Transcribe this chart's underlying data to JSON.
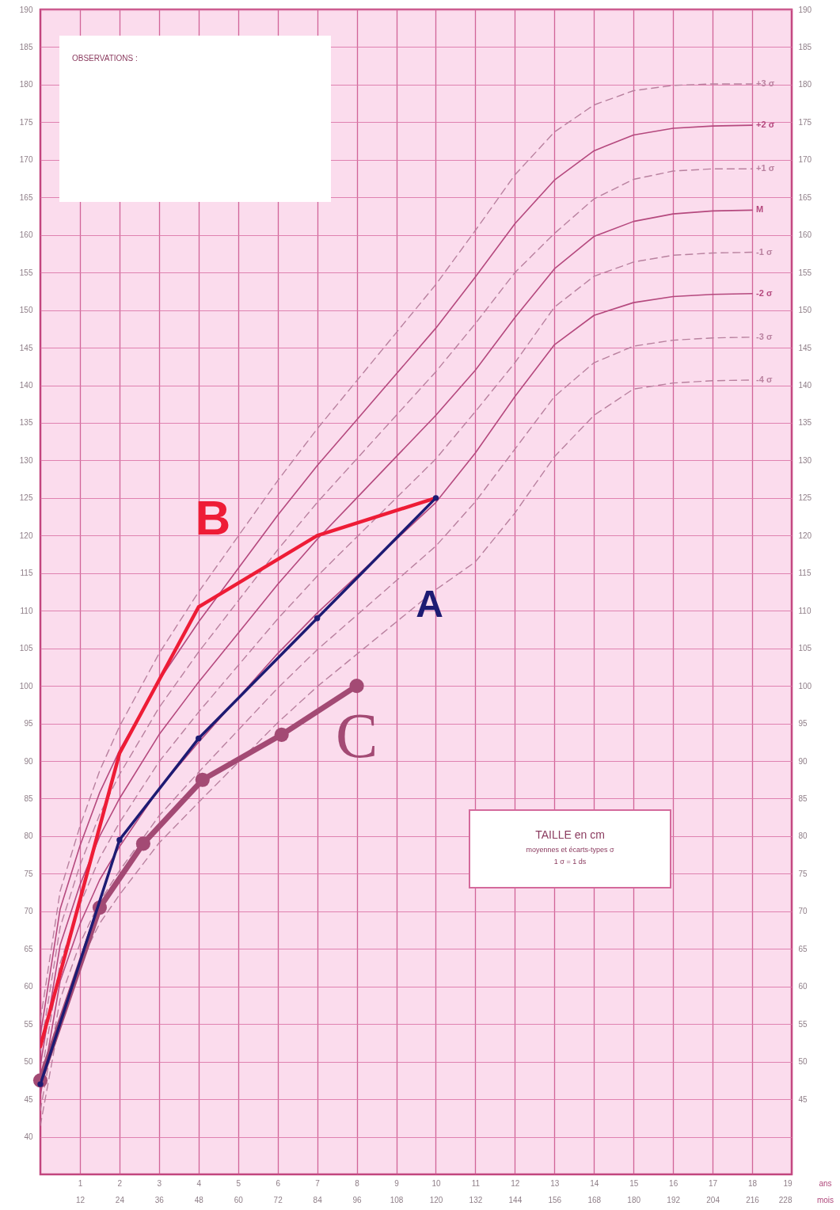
{
  "chart_data": {
    "type": "line",
    "xlabel": "ans",
    "x2label": "mois",
    "xlim": [
      0,
      19
    ],
    "xticks": [
      1,
      2,
      3,
      4,
      5,
      6,
      7,
      8,
      9,
      10,
      11,
      12,
      13,
      14,
      15,
      16,
      17,
      18,
      19
    ],
    "x2lim": [
      0,
      228
    ],
    "x2ticks": [
      12,
      24,
      36,
      48,
      60,
      72,
      84,
      96,
      108,
      120,
      132,
      144,
      156,
      168,
      180,
      192,
      204,
      216,
      228
    ],
    "ylim": [
      35,
      190
    ],
    "yticks": [
      40,
      45,
      50,
      55,
      60,
      65,
      70,
      75,
      80,
      85,
      90,
      95,
      100,
      105,
      110,
      115,
      120,
      125,
      130,
      135,
      140,
      145,
      150,
      155,
      160,
      165,
      170,
      175,
      180,
      185,
      190
    ],
    "y2lim": [
      35,
      190
    ],
    "y2ticks": [
      45,
      50,
      55,
      60,
      65,
      70,
      75,
      80,
      85,
      90,
      95,
      100,
      105,
      110,
      115,
      120,
      125,
      130,
      135,
      140,
      145,
      150,
      155,
      160,
      165,
      170,
      175,
      180,
      185,
      190
    ],
    "grid": true,
    "annotations": [
      "OBSERVATIONS :",
      "TAILLE en cm",
      "moyennes et écarts-types σ",
      "1 σ = 1 ds"
    ],
    "series": [
      {
        "name": "+3 σ",
        "color": "#b9819f",
        "line_style": "dashed",
        "x": [
          0,
          0.5,
          1,
          1.5,
          2,
          3,
          4,
          5,
          6,
          7,
          8,
          9,
          10,
          11,
          12,
          13,
          14,
          15,
          16,
          17,
          18
        ],
        "values": [
          55.5,
          72.7,
          81.3,
          88.7,
          94.6,
          104.3,
          112.5,
          119.9,
          127.3,
          134.2,
          140.6,
          147,
          153.4,
          160.6,
          168,
          173.7,
          177.3,
          179.2,
          179.9,
          180.1,
          180.1
        ]
      },
      {
        "name": "+2 σ",
        "color": "#b5497e",
        "line_style": "solid",
        "x": [
          0,
          0.5,
          1,
          1.5,
          2,
          3,
          4,
          5,
          6,
          7,
          8,
          9,
          10,
          11,
          12,
          13,
          14,
          15,
          16,
          17,
          18
        ],
        "values": [
          53.5,
          70.3,
          78.7,
          85.8,
          91.4,
          100.7,
          108.5,
          115.6,
          122.7,
          129.3,
          135.4,
          141.5,
          147.6,
          154.4,
          161.5,
          167.3,
          171.2,
          173.3,
          174.2,
          174.5,
          174.6
        ]
      },
      {
        "name": "+1 σ",
        "color": "#b9819f",
        "line_style": "dashed",
        "x": [
          0,
          0.5,
          1,
          1.5,
          2,
          3,
          4,
          5,
          6,
          7,
          8,
          9,
          10,
          11,
          12,
          13,
          14,
          15,
          16,
          17,
          18
        ],
        "values": [
          51.5,
          67.9,
          76.1,
          82.9,
          88.2,
          97.1,
          104.5,
          111.3,
          118.1,
          124.4,
          130.2,
          136,
          141.8,
          148.2,
          155,
          160.2,
          164.8,
          167.4,
          168.5,
          168.8,
          168.8
        ]
      },
      {
        "name": "M",
        "color": "#b5497e",
        "line_style": "solid",
        "x": [
          0,
          0.5,
          1,
          1.5,
          2,
          3,
          4,
          5,
          6,
          7,
          8,
          9,
          10,
          11,
          12,
          13,
          14,
          15,
          16,
          17,
          18
        ],
        "values": [
          49.5,
          65.5,
          73.5,
          80,
          85,
          93.5,
          100.5,
          107,
          113.5,
          119.5,
          125,
          130.5,
          136,
          142,
          149,
          155.5,
          159.8,
          161.8,
          162.8,
          163.2,
          163.3
        ]
      },
      {
        "name": "-1 σ",
        "color": "#b9819f",
        "line_style": "dashed",
        "x": [
          0,
          0.5,
          1,
          1.5,
          2,
          3,
          4,
          5,
          6,
          7,
          8,
          9,
          10,
          11,
          12,
          13,
          14,
          15,
          16,
          17,
          18
        ],
        "values": [
          47.5,
          63.1,
          70.9,
          77.1,
          81.8,
          89.9,
          96.5,
          102.7,
          108.9,
          114.6,
          119.8,
          125,
          130.2,
          136.5,
          143,
          150.4,
          154.5,
          156.4,
          157.3,
          157.6,
          157.7
        ]
      },
      {
        "name": "-2 σ",
        "color": "#b5497e",
        "line_style": "solid",
        "x": [
          0,
          0.5,
          1,
          1.5,
          2,
          3,
          4,
          5,
          6,
          7,
          8,
          9,
          10,
          11,
          12,
          13,
          14,
          15,
          16,
          17,
          18
        ],
        "values": [
          45.5,
          60.7,
          68.3,
          74.2,
          78.6,
          86.3,
          92.5,
          98.4,
          104.3,
          109.7,
          114.6,
          119.5,
          124.4,
          131,
          138.5,
          145.4,
          149.3,
          151,
          151.8,
          152.1,
          152.2
        ]
      },
      {
        "name": "-3 σ",
        "color": "#b9819f",
        "line_style": "dashed",
        "x": [
          0,
          0.5,
          1,
          1.5,
          2,
          3,
          4,
          5,
          6,
          7,
          8,
          9,
          10,
          11,
          12,
          13,
          14,
          15,
          16,
          17,
          18
        ],
        "values": [
          43.5,
          58.3,
          65.7,
          71.3,
          75.4,
          82.7,
          88.5,
          94.1,
          99.7,
          104.8,
          109.4,
          114,
          118.6,
          124.5,
          131.5,
          138.5,
          143,
          145.2,
          146,
          146.3,
          146.4
        ]
      },
      {
        "name": "-4 σ",
        "color": "#b9819f",
        "line_style": "dashed",
        "x": [
          0,
          0.5,
          1,
          1.5,
          2,
          3,
          4,
          5,
          6,
          7,
          8,
          9,
          10,
          11,
          12,
          13,
          14,
          15,
          16,
          17,
          18
        ],
        "values": [
          41.5,
          55.9,
          63.1,
          68.4,
          72.2,
          79.1,
          84.5,
          89.8,
          95.1,
          99.9,
          104.2,
          108.5,
          112.8,
          116.5,
          123,
          130.5,
          136,
          139.5,
          140.3,
          140.6,
          140.7
        ]
      },
      {
        "name": "C",
        "color": "#a34a74",
        "line_style": "solid",
        "marker": "circle",
        "x": [
          0,
          1.5,
          2.6,
          4.1,
          6.1,
          8
        ],
        "values": [
          47.5,
          70.5,
          79,
          87.5,
          93.5,
          100
        ]
      },
      {
        "name": "B",
        "color": "#ee1c36",
        "line_style": "solid",
        "x": [
          0,
          2,
          4,
          7,
          10
        ],
        "values": [
          52,
          91,
          110.5,
          120,
          125
        ]
      },
      {
        "name": "A",
        "color": "#1d1b73",
        "line_style": "solid",
        "marker": "circle",
        "x": [
          0,
          2,
          4,
          7,
          10
        ],
        "values": [
          47,
          79.5,
          93,
          109,
          125
        ]
      }
    ]
  }
}
